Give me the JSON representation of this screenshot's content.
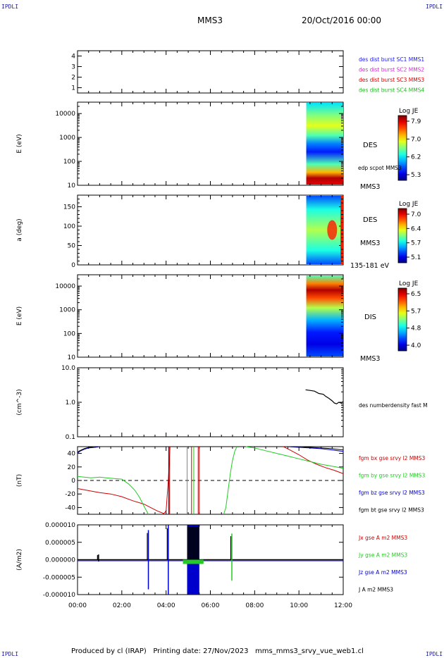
{
  "header": {
    "corner_tl": "IPDLI",
    "corner_tr": "IPDLI",
    "corner_bl": "IPDLI",
    "corner_br": "IPDLI",
    "mission": "MMS3",
    "date": "20/Oct/2016 00:00"
  },
  "footer": {
    "text": "Produced by cl (IRAP)   Printing date: 27/Nov/2023   mms_mms3_srvy_vue_web1.cl"
  },
  "colors": {
    "mms1": "#1a1aff",
    "mms2": "#cc33cc",
    "mms3": "#dd0000",
    "mms4": "#22bb22",
    "bx": "#cc0000",
    "by": "#22cc22",
    "bz": "#0000cc",
    "bt": "#000000"
  },
  "chart_data": [
    {
      "type": "line",
      "name": "burst-panel",
      "ylim": [
        0.5,
        4.5
      ],
      "yticks": [
        "1",
        "2",
        "3",
        "4"
      ],
      "legend": [
        "des dist burst SC1 MMS1",
        "des dist burst SC2 MMS2",
        "des dist burst SC3 MMS3",
        "des dist burst SC4 MMS4"
      ]
    },
    {
      "type": "heatmap",
      "name": "des-energy",
      "ylabel": "E (eV)",
      "yscale": "log",
      "ylim": [
        10,
        30000
      ],
      "yticks": [
        "10",
        "100",
        "1000",
        "10000"
      ],
      "x_range": [
        "10:20",
        "12:00"
      ],
      "right_labels": [
        "DES",
        "edp scpot MMS3",
        "MMS3"
      ],
      "colorbar": {
        "title": "Log JE",
        "ticks": [
          "7.9",
          "7.0",
          "6.2",
          "5.3"
        ]
      }
    },
    {
      "type": "heatmap",
      "name": "des-pitch",
      "ylabel": "a (deg)",
      "ylim": [
        0,
        180
      ],
      "yticks": [
        "0",
        "50",
        "100",
        "150"
      ],
      "x_range": [
        "10:20",
        "12:00"
      ],
      "right_labels": [
        "DES",
        "MMS3",
        "135-181 eV"
      ],
      "colorbar": {
        "title": "Log JE",
        "ticks": [
          "7.0",
          "6.4",
          "5.7",
          "5.1"
        ]
      }
    },
    {
      "type": "heatmap",
      "name": "dis-energy",
      "ylabel": "E (eV)",
      "yscale": "log",
      "ylim": [
        10,
        30000
      ],
      "yticks": [
        "10",
        "100",
        "1000",
        "10000"
      ],
      "x_range": [
        "10:20",
        "12:00"
      ],
      "right_labels": [
        "DIS",
        "MMS3"
      ],
      "colorbar": {
        "title": "Log JE",
        "ticks": [
          "6.5",
          "5.7",
          "4.8",
          "4.0"
        ]
      }
    },
    {
      "type": "line",
      "name": "density",
      "ylabel": "(cm^-3)",
      "yscale": "log",
      "ylim": [
        0.1,
        10
      ],
      "yticks": [
        "0.1",
        "1.0",
        "10.0"
      ],
      "legend": [
        "des numberdensity fast M"
      ],
      "x": [
        10.3,
        10.5,
        10.7,
        10.9,
        11.1,
        11.2,
        11.35,
        11.5,
        11.6,
        11.7,
        11.8,
        11.9,
        12.0
      ],
      "y": [
        2.3,
        2.2,
        2.1,
        1.8,
        1.7,
        1.5,
        1.3,
        1.1,
        0.95,
        0.9,
        1.0,
        0.95,
        1.05
      ]
    },
    {
      "type": "line",
      "name": "magnetic-field",
      "ylabel": "(nT)",
      "ylim": [
        -50,
        50
      ],
      "yticks": [
        "-40",
        "-20",
        "0",
        "20",
        "40"
      ],
      "legend": [
        "fgm bx gse srvy l2 MMS3",
        "fgm by gse srvy l2 MMS3",
        "fgm bz gse srvy l2 MMS3",
        "fgm bt gse srvy l2 MMS3"
      ],
      "series": [
        {
          "key": "bx",
          "x": [
            0.0,
            0.5,
            1.0,
            1.5,
            2.0,
            2.5,
            3.0,
            3.3,
            3.6,
            3.9,
            4.0,
            4.1,
            4.18
          ],
          "y": [
            -12,
            -15,
            -18,
            -20,
            -24,
            -30,
            -35,
            -40,
            -45,
            -49,
            -45,
            0,
            50
          ]
        },
        {
          "key": "by",
          "x": [
            0.0,
            0.3,
            0.6,
            1.0,
            1.3,
            1.6,
            2.0,
            2.3,
            2.6,
            2.8,
            3.0,
            3.2
          ],
          "y": [
            6,
            5,
            4,
            5,
            4,
            3,
            2,
            -5,
            -15,
            -25,
            -38,
            -50
          ]
        },
        {
          "key": "bz",
          "x": [
            0.0,
            0.1,
            0.3,
            0.5,
            0.8,
            1.0,
            1.2
          ],
          "y": [
            40,
            43,
            46,
            48,
            49,
            50,
            50
          ]
        },
        {
          "key": "bt",
          "x": [
            0.0,
            0.1,
            0.3,
            0.5,
            0.8,
            1.0,
            1.2
          ],
          "y": [
            42,
            44,
            47,
            49,
            50,
            50,
            50
          ]
        },
        {
          "key": "by",
          "x": [
            6.6,
            6.7,
            6.8,
            6.9,
            7.0,
            7.1,
            7.2
          ],
          "y": [
            -50,
            -40,
            -15,
            10,
            30,
            43,
            50
          ]
        },
        {
          "key": "bx",
          "x": [
            9.3,
            9.6,
            10.0,
            10.4,
            10.8,
            11.2,
            11.6,
            12.0
          ],
          "y": [
            50,
            45,
            38,
            30,
            24,
            19,
            15,
            10
          ]
        },
        {
          "key": "by",
          "x": [
            7.6,
            8.0,
            8.5,
            9.0,
            9.5,
            10.0,
            10.5,
            11.0,
            11.5,
            12.0
          ],
          "y": [
            50,
            48,
            44,
            40,
            36,
            32,
            28,
            24,
            21,
            18
          ]
        },
        {
          "key": "bz",
          "x": [
            9.5,
            10.0,
            10.5,
            11.0,
            11.5,
            12.0
          ],
          "y": [
            50,
            49,
            48,
            47,
            45,
            43
          ]
        },
        {
          "key": "bt",
          "x": [
            9.5,
            10.0,
            10.5,
            11.0,
            11.5,
            12.0
          ],
          "y": [
            50,
            50,
            49,
            48,
            47,
            45
          ]
        }
      ]
    },
    {
      "type": "line",
      "name": "current-density",
      "ylabel": "(A/m2)",
      "ylim": [
        -1e-05,
        1e-05
      ],
      "yticks": [
        "-0.000010",
        "-0.000005",
        "0.000000",
        "0.000005",
        "0.000010"
      ],
      "legend": [
        "Jx gse A m2 MMS3",
        "Jy gse A m2 MMS3",
        "Jz gse A m2 MMS3",
        "J A m2 MMS3"
      ],
      "xlabel": "",
      "xticks": [
        "00:00",
        "02:00",
        "04:00",
        "06:00",
        "08:00",
        "10:00",
        "12:00"
      ],
      "spikes": [
        {
          "x": 0.95,
          "top": 1.5e-06,
          "bottom": -5e-07,
          "key": "bt"
        },
        {
          "x": 3.2,
          "top": 8.5e-06,
          "bottom": -8.5e-06,
          "key": "bz"
        },
        {
          "x": 4.1,
          "top": 1e-05,
          "bottom": -1e-05,
          "key": "bz"
        },
        {
          "x": 6.97,
          "top": 7.5e-06,
          "bottom": -6e-06,
          "key": "by"
        }
      ],
      "band": {
        "x0": 4.95,
        "x1": 5.5,
        "top": 1e-05,
        "bottom": -1e-05,
        "key": "bz"
      }
    }
  ]
}
